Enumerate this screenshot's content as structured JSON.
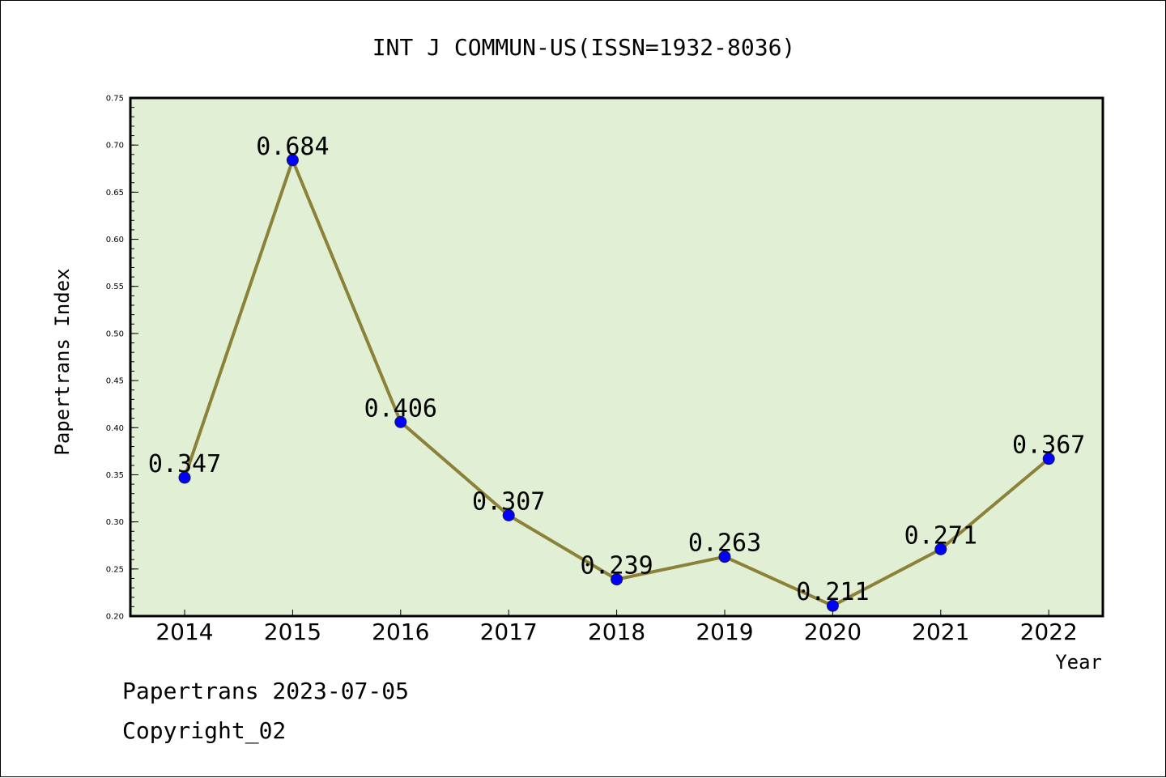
{
  "chart_data": {
    "type": "line",
    "title": "INT J COMMUN-US(ISSN=1932-8036)",
    "xlabel": "Year",
    "ylabel": "Papertrans Index",
    "categories": [
      "2014",
      "2015",
      "2016",
      "2017",
      "2018",
      "2019",
      "2020",
      "2021",
      "2022"
    ],
    "values": [
      0.347,
      0.684,
      0.406,
      0.307,
      0.239,
      0.263,
      0.211,
      0.271,
      0.367
    ],
    "data_labels": [
      "0.347",
      "0.684",
      "0.406",
      "0.307",
      "0.239",
      "0.263",
      "0.211",
      "0.271",
      "0.367"
    ],
    "ylim": [
      0.2,
      0.75
    ],
    "yticks": [
      "0.20",
      "0.25",
      "0.30",
      "0.35",
      "0.40",
      "0.45",
      "0.50",
      "0.55",
      "0.60",
      "0.65",
      "0.70",
      "0.75"
    ],
    "grid": false,
    "legend": "none",
    "colors": {
      "plot_background": "#e1efd5",
      "line": "#8b8139",
      "marker": "#0000ff",
      "frame": "#000000"
    }
  },
  "footer": {
    "date_line": "Papertrans 2023-07-05",
    "copyright": "Copyright_02"
  }
}
